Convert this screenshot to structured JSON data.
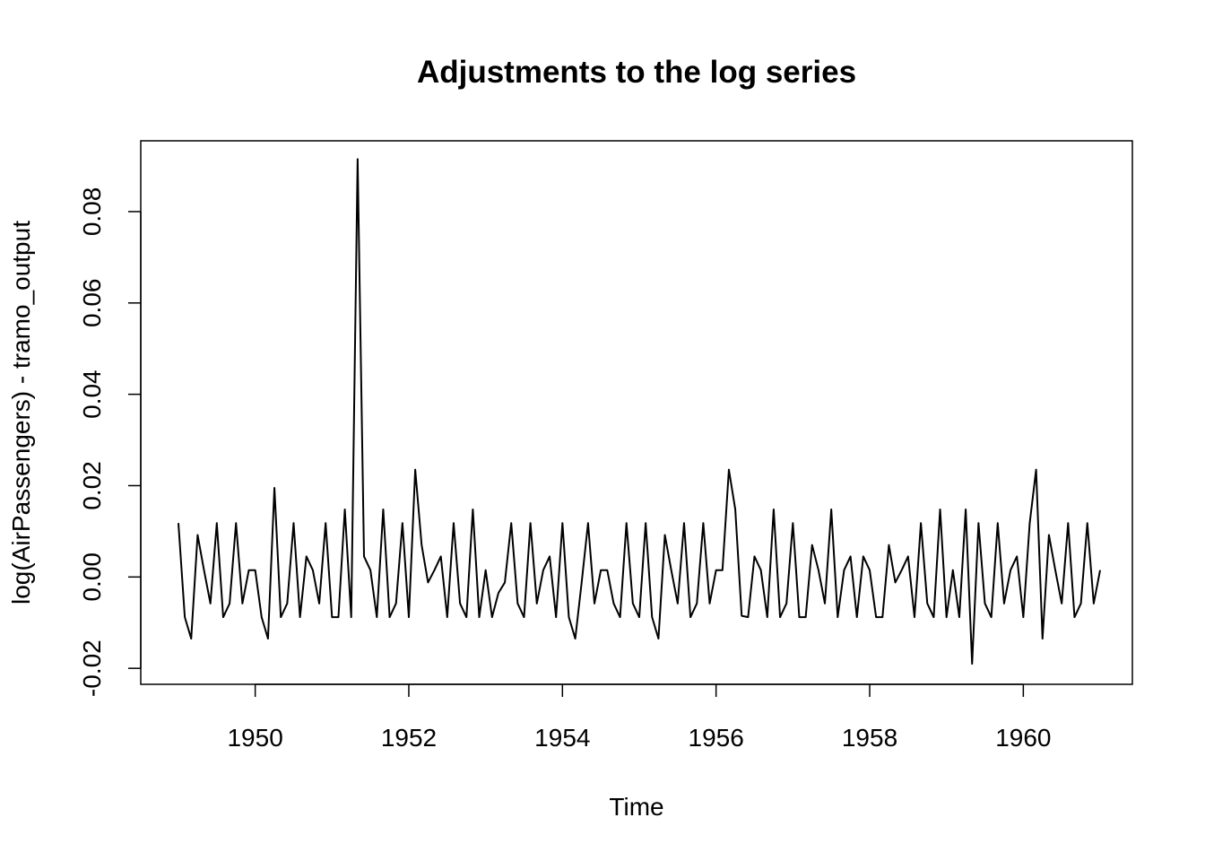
{
  "chart_data": {
    "type": "line",
    "title": "Adjustments to the log series",
    "xlabel": "Time",
    "ylabel": "log(AirPassengers) - tramo_output",
    "xlim": [
      1948.51,
      1961.42
    ],
    "ylim": [
      -0.0235,
      0.0955
    ],
    "x_start": 1949.0,
    "frequency": 12,
    "x_ticks": [
      1950,
      1952,
      1954,
      1956,
      1958,
      1960
    ],
    "x_tick_labels": [
      "1950",
      "1952",
      "1954",
      "1956",
      "1958",
      "1960"
    ],
    "y_ticks": [
      -0.02,
      0.0,
      0.02,
      0.04,
      0.06,
      0.08
    ],
    "y_tick_labels": [
      "-0.02",
      "0.00",
      "0.02",
      "0.04",
      "0.06",
      "0.08"
    ],
    "grid": false,
    "series": [
      {
        "values": [
          0.0118,
          -0.0088,
          -0.0135,
          0.0092,
          0.0015,
          -0.0058,
          0.0118,
          -0.0088,
          -0.0058,
          0.0118,
          -0.0058,
          0.0015,
          0.0015,
          -0.0088,
          -0.0135,
          0.0195,
          -0.0088,
          -0.0058,
          0.0118,
          -0.0088,
          0.0045,
          0.0015,
          -0.0058,
          0.0118,
          -0.0088,
          -0.0088,
          0.0148,
          -0.0088,
          0.0915,
          0.0045,
          0.0015,
          -0.0088,
          0.0148,
          -0.0088,
          -0.0058,
          0.0118,
          -0.0088,
          0.0235,
          0.007,
          -0.0012,
          0.0015,
          0.0045,
          -0.0088,
          0.0118,
          -0.0058,
          -0.0088,
          0.0148,
          -0.0088,
          0.0015,
          -0.0088,
          -0.0035,
          -0.0012,
          0.0118,
          -0.0058,
          -0.0088,
          0.0118,
          -0.0058,
          0.0015,
          0.0045,
          -0.0088,
          0.0118,
          -0.0088,
          -0.0135,
          -0.0012,
          0.0118,
          -0.0058,
          0.0015,
          0.0015,
          -0.0058,
          -0.0088,
          0.0118,
          -0.0058,
          -0.0088,
          0.0118,
          -0.0088,
          -0.0135,
          0.0092,
          0.0015,
          -0.0058,
          0.0118,
          -0.0088,
          -0.0058,
          0.0118,
          -0.0058,
          0.0015,
          0.0015,
          0.0235,
          0.0148,
          -0.0085,
          -0.0088,
          0.0045,
          0.0015,
          -0.0088,
          0.0148,
          -0.0088,
          -0.0058,
          0.0118,
          -0.0088,
          -0.0088,
          0.007,
          0.0015,
          -0.0058,
          0.0148,
          -0.0088,
          0.0015,
          0.0045,
          -0.0088,
          0.0045,
          0.0015,
          -0.0088,
          -0.0088,
          0.007,
          -0.0012,
          0.0015,
          0.0045,
          -0.0088,
          0.0118,
          -0.0058,
          -0.0088,
          0.0148,
          -0.0088,
          0.0015,
          -0.0088,
          0.0148,
          -0.019,
          0.0118,
          -0.0058,
          -0.0088,
          0.0118,
          -0.0058,
          0.0015,
          0.0045,
          -0.0088,
          0.0118,
          0.0235,
          -0.0135,
          0.0092,
          0.0015,
          -0.0058,
          0.0118,
          -0.0088,
          -0.0058,
          0.0118,
          -0.0058,
          0.0015
        ]
      }
    ]
  }
}
